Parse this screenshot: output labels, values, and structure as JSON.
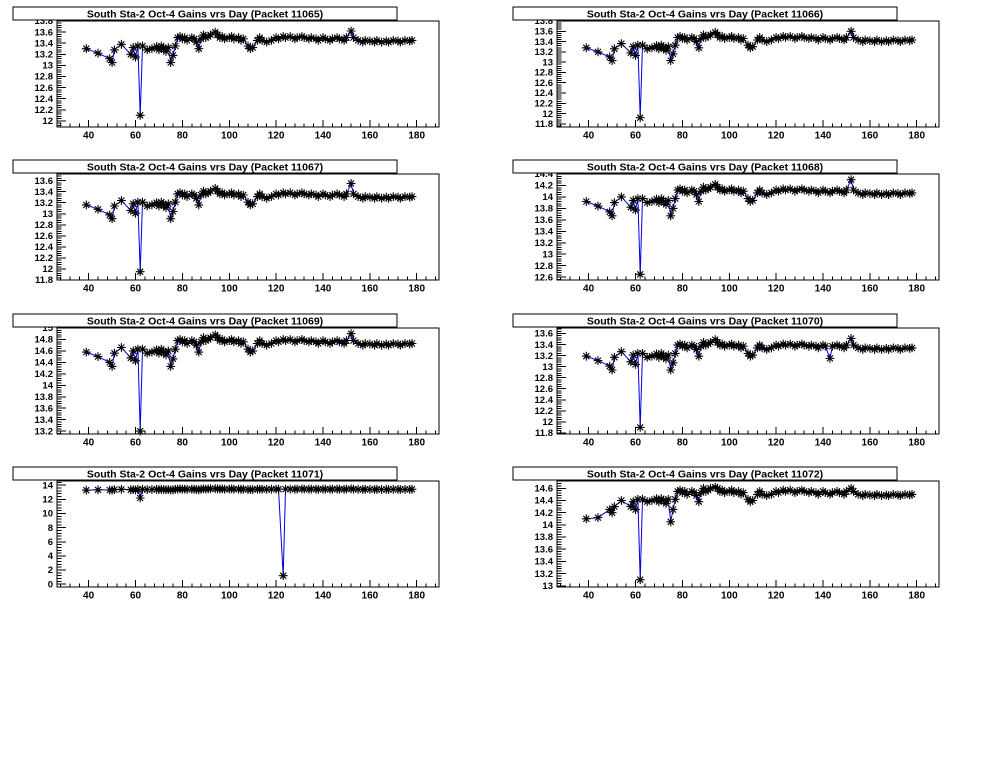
{
  "page": {
    "background": "#ffffff"
  },
  "chart_data": {
    "type": "line",
    "marker": "asterisk",
    "marker_color": "#000000",
    "line_color": "#0000e0",
    "xlim": [
      26.5,
      189.5
    ],
    "x_ticks": [
      40,
      60,
      80,
      100,
      120,
      140,
      160,
      180
    ],
    "x_minor_step": 4,
    "x": [
      39,
      44,
      49,
      50,
      51,
      54,
      58,
      59,
      60,
      61,
      62,
      63,
      65,
      67,
      69,
      70,
      71,
      72,
      73,
      74,
      75,
      76,
      77,
      78,
      79,
      80,
      81,
      82,
      84,
      85,
      86,
      87,
      88,
      89,
      90,
      91,
      92,
      94,
      95,
      96,
      97,
      98,
      100,
      101,
      102,
      104,
      105,
      106,
      108,
      109,
      110,
      112,
      113,
      114,
      116,
      118,
      120,
      121,
      123,
      124,
      126,
      128,
      129,
      131,
      132,
      134,
      135,
      137,
      138,
      140,
      141,
      143,
      144,
      146,
      147,
      149,
      150,
      152,
      153,
      155,
      157,
      158,
      160,
      162,
      163,
      165,
      167,
      168,
      170,
      172,
      173,
      175,
      177,
      178
    ],
    "panels": [
      {
        "packet": "11065",
        "title": "South Sta-2 Oct-4 Gains vrs Day (Packet 11065)",
        "ylim": [
          11.89,
          13.8
        ],
        "yticks": [
          12,
          12.2,
          12.4,
          12.6,
          12.8,
          13,
          13.2,
          13.4,
          13.6,
          13.8
        ],
        "y_minor_step": 0.04,
        "y": [
          13.3,
          13.22,
          13.12,
          13.05,
          13.28,
          13.38,
          13.2,
          13.32,
          13.15,
          13.35,
          12.1,
          13.35,
          13.28,
          13.3,
          13.34,
          13.28,
          13.35,
          13.3,
          13.25,
          13.32,
          13.05,
          13.18,
          13.35,
          13.5,
          13.52,
          13.48,
          13.5,
          13.45,
          13.5,
          13.48,
          13.42,
          13.3,
          13.48,
          13.55,
          13.5,
          13.52,
          13.55,
          13.6,
          13.55,
          13.5,
          13.52,
          13.48,
          13.5,
          13.52,
          13.48,
          13.5,
          13.45,
          13.48,
          13.35,
          13.3,
          13.32,
          13.45,
          13.5,
          13.45,
          13.42,
          13.45,
          13.5,
          13.48,
          13.52,
          13.5,
          13.52,
          13.48,
          13.5,
          13.52,
          13.5,
          13.48,
          13.5,
          13.48,
          13.45,
          13.5,
          13.48,
          13.45,
          13.48,
          13.5,
          13.48,
          13.45,
          13.5,
          13.62,
          13.5,
          13.45,
          13.42,
          13.45,
          13.44,
          13.42,
          13.45,
          13.42,
          13.44,
          13.42,
          13.45,
          13.44,
          13.42,
          13.45,
          13.44,
          13.45
        ]
      },
      {
        "packet": "11066",
        "title": "South Sta-2 Oct-4 Gains vrs Day (Packet 11066)",
        "ylim": [
          11.74,
          13.8
        ],
        "yticks": [
          11.8,
          12,
          12.2,
          12.4,
          12.6,
          12.8,
          13,
          13.2,
          13.4,
          13.6,
          13.8
        ],
        "y_minor_step": 0.04,
        "y": [
          13.28,
          13.2,
          13.1,
          13.03,
          13.26,
          13.36,
          13.18,
          13.3,
          13.13,
          13.33,
          11.92,
          13.33,
          13.26,
          13.28,
          13.32,
          13.26,
          13.33,
          13.28,
          13.23,
          13.3,
          13.03,
          13.16,
          13.33,
          13.48,
          13.5,
          13.46,
          13.48,
          13.43,
          13.48,
          13.46,
          13.4,
          13.28,
          13.46,
          13.53,
          13.48,
          13.5,
          13.53,
          13.58,
          13.53,
          13.48,
          13.5,
          13.46,
          13.48,
          13.5,
          13.46,
          13.48,
          13.43,
          13.46,
          13.33,
          13.28,
          13.3,
          13.43,
          13.48,
          13.43,
          13.4,
          13.43,
          13.48,
          13.46,
          13.5,
          13.48,
          13.5,
          13.46,
          13.48,
          13.5,
          13.48,
          13.46,
          13.48,
          13.46,
          13.43,
          13.48,
          13.46,
          13.43,
          13.46,
          13.48,
          13.46,
          13.43,
          13.48,
          13.6,
          13.48,
          13.43,
          13.4,
          13.43,
          13.42,
          13.4,
          13.43,
          13.4,
          13.42,
          13.4,
          13.43,
          13.42,
          13.4,
          13.43,
          13.42,
          13.43
        ]
      },
      {
        "packet": "11067",
        "title": "South Sta-2 Oct-4 Gains vrs Day (Packet 11067)",
        "ylim": [
          11.8,
          13.72
        ],
        "yticks": [
          11.8,
          12,
          12.2,
          12.4,
          12.6,
          12.8,
          13,
          13.2,
          13.4,
          13.6
        ],
        "y_minor_step": 0.04,
        "y": [
          13.16,
          13.08,
          12.98,
          12.91,
          13.14,
          13.24,
          13.06,
          13.18,
          13.01,
          13.21,
          11.95,
          13.21,
          13.14,
          13.16,
          13.2,
          13.14,
          13.21,
          13.16,
          13.11,
          13.18,
          12.91,
          13.04,
          13.21,
          13.36,
          13.38,
          13.34,
          13.36,
          13.31,
          13.36,
          13.34,
          13.28,
          13.16,
          13.34,
          13.41,
          13.36,
          13.38,
          13.41,
          13.46,
          13.41,
          13.36,
          13.38,
          13.34,
          13.36,
          13.38,
          13.34,
          13.36,
          13.31,
          13.34,
          13.21,
          13.16,
          13.18,
          13.31,
          13.36,
          13.31,
          13.28,
          13.31,
          13.36,
          13.34,
          13.38,
          13.36,
          13.38,
          13.34,
          13.36,
          13.38,
          13.36,
          13.34,
          13.36,
          13.34,
          13.31,
          13.36,
          13.34,
          13.31,
          13.34,
          13.36,
          13.34,
          13.31,
          13.36,
          13.55,
          13.36,
          13.31,
          13.28,
          13.31,
          13.3,
          13.28,
          13.31,
          13.28,
          13.3,
          13.28,
          13.31,
          13.3,
          13.28,
          13.31,
          13.3,
          13.31
        ]
      },
      {
        "packet": "11068",
        "title": "South Sta-2 Oct-4 Gains vrs Day (Packet 11068)",
        "ylim": [
          12.55,
          14.4
        ],
        "yticks": [
          12.6,
          12.8,
          13,
          13.2,
          13.4,
          13.6,
          13.8,
          14,
          14.2,
          14.4
        ],
        "y_minor_step": 0.04,
        "y": [
          13.92,
          13.84,
          13.74,
          13.67,
          13.9,
          14.0,
          13.82,
          13.94,
          13.77,
          13.97,
          12.65,
          13.97,
          13.9,
          13.92,
          13.96,
          13.9,
          13.97,
          13.92,
          13.87,
          13.94,
          13.67,
          13.8,
          13.97,
          14.12,
          14.14,
          14.1,
          14.12,
          14.07,
          14.12,
          14.1,
          14.04,
          13.92,
          14.1,
          14.17,
          14.12,
          14.14,
          14.17,
          14.22,
          14.17,
          14.12,
          14.14,
          14.1,
          14.12,
          14.14,
          14.1,
          14.12,
          14.07,
          14.1,
          13.97,
          13.92,
          13.94,
          14.07,
          14.12,
          14.07,
          14.04,
          14.07,
          14.12,
          14.1,
          14.14,
          14.12,
          14.14,
          14.1,
          14.12,
          14.14,
          14.12,
          14.1,
          14.12,
          14.1,
          14.07,
          14.12,
          14.1,
          14.07,
          14.1,
          14.12,
          14.1,
          14.07,
          14.12,
          14.3,
          14.12,
          14.07,
          14.04,
          14.07,
          14.06,
          14.04,
          14.07,
          14.04,
          14.06,
          14.04,
          14.07,
          14.06,
          14.04,
          14.07,
          14.06,
          14.07
        ]
      },
      {
        "packet": "11069",
        "title": "South Sta-2 Oct-4 Gains vrs Day (Packet 11069)",
        "ylim": [
          13.15,
          15.0
        ],
        "yticks": [
          13.2,
          13.4,
          13.6,
          13.8,
          14,
          14.2,
          14.4,
          14.6,
          14.8,
          15
        ],
        "y_minor_step": 0.04,
        "y": [
          14.58,
          14.5,
          14.4,
          14.33,
          14.56,
          14.66,
          14.48,
          14.6,
          14.43,
          14.63,
          13.2,
          14.63,
          14.56,
          14.58,
          14.62,
          14.56,
          14.63,
          14.58,
          14.53,
          14.6,
          14.33,
          14.46,
          14.63,
          14.78,
          14.8,
          14.76,
          14.78,
          14.73,
          14.78,
          14.76,
          14.7,
          14.58,
          14.76,
          14.83,
          14.78,
          14.8,
          14.83,
          14.88,
          14.83,
          14.78,
          14.8,
          14.76,
          14.78,
          14.8,
          14.76,
          14.78,
          14.73,
          14.76,
          14.63,
          14.58,
          14.6,
          14.73,
          14.78,
          14.73,
          14.7,
          14.73,
          14.78,
          14.76,
          14.8,
          14.78,
          14.8,
          14.76,
          14.78,
          14.8,
          14.78,
          14.76,
          14.78,
          14.76,
          14.73,
          14.78,
          14.76,
          14.73,
          14.76,
          14.78,
          14.76,
          14.73,
          14.78,
          14.9,
          14.78,
          14.73,
          14.7,
          14.73,
          14.72,
          14.7,
          14.73,
          14.7,
          14.72,
          14.7,
          14.73,
          14.72,
          14.7,
          14.73,
          14.72,
          14.73
        ]
      },
      {
        "packet": "11070",
        "title": "South Sta-2 Oct-4 Gains vrs Day (Packet 11070)",
        "ylim": [
          11.78,
          13.7
        ],
        "yticks": [
          11.8,
          12,
          12.2,
          12.4,
          12.6,
          12.8,
          13,
          13.2,
          13.4,
          13.6
        ],
        "y_minor_step": 0.04,
        "y": [
          13.19,
          13.11,
          13.01,
          12.94,
          13.17,
          13.27,
          13.09,
          13.21,
          13.04,
          13.24,
          11.9,
          13.24,
          13.17,
          13.19,
          13.23,
          13.17,
          13.24,
          13.19,
          13.14,
          13.21,
          12.94,
          13.07,
          13.24,
          13.39,
          13.41,
          13.37,
          13.39,
          13.34,
          13.39,
          13.37,
          13.31,
          13.19,
          13.37,
          13.44,
          13.39,
          13.41,
          13.44,
          13.49,
          13.44,
          13.39,
          13.41,
          13.37,
          13.39,
          13.41,
          13.37,
          13.39,
          13.34,
          13.37,
          13.24,
          13.19,
          13.21,
          13.34,
          13.39,
          13.34,
          13.31,
          13.34,
          13.39,
          13.37,
          13.41,
          13.39,
          13.41,
          13.37,
          13.39,
          13.41,
          13.39,
          13.37,
          13.39,
          13.37,
          13.34,
          13.39,
          13.37,
          13.15,
          13.37,
          13.39,
          13.37,
          13.34,
          13.39,
          13.51,
          13.39,
          13.34,
          13.31,
          13.34,
          13.33,
          13.31,
          13.34,
          13.31,
          13.33,
          13.31,
          13.34,
          13.33,
          13.31,
          13.34,
          13.33,
          13.34
        ]
      },
      {
        "packet": "11071",
        "title": "South Sta-2 Oct-4 Gains vrs Day (Packet 11071)",
        "ylim": [
          -0.4,
          14.6
        ],
        "yticks": [
          0,
          2,
          4,
          6,
          8,
          10,
          12,
          14
        ],
        "y_minor_step": 0.4,
        "y": [
          13.3,
          13.35,
          13.32,
          13.3,
          13.38,
          13.42,
          13.35,
          13.4,
          13.33,
          13.42,
          12.2,
          13.42,
          13.38,
          13.4,
          13.42,
          13.38,
          13.42,
          13.4,
          13.36,
          13.4,
          13.32,
          13.36,
          13.42,
          13.46,
          13.48,
          13.44,
          13.46,
          13.42,
          13.46,
          13.44,
          13.4,
          13.36,
          13.44,
          13.5,
          13.46,
          13.48,
          13.5,
          13.52,
          13.5,
          13.46,
          13.48,
          13.44,
          13.46,
          13.48,
          13.44,
          13.46,
          13.42,
          13.44,
          13.4,
          13.38,
          13.4,
          13.44,
          13.46,
          13.44,
          13.42,
          13.44,
          13.46,
          13.44,
          1.2,
          13.46,
          13.46,
          13.44,
          13.46,
          13.48,
          13.46,
          13.44,
          13.46,
          13.44,
          13.42,
          13.46,
          13.44,
          13.42,
          13.44,
          13.46,
          13.44,
          13.42,
          13.46,
          13.5,
          13.46,
          13.42,
          13.4,
          13.42,
          13.41,
          13.4,
          13.42,
          13.4,
          13.41,
          13.4,
          13.42,
          13.41,
          13.4,
          13.42,
          13.41,
          13.42
        ]
      },
      {
        "packet": "11072",
        "title": "South Sta-2 Oct-4 Gains vrs Day (Packet 11072)",
        "ylim": [
          12.98,
          14.72
        ],
        "yticks": [
          13,
          13.2,
          13.4,
          13.6,
          13.8,
          14,
          14.2,
          14.4,
          14.6
        ],
        "y_minor_step": 0.04,
        "y": [
          14.1,
          14.12,
          14.25,
          14.2,
          14.3,
          14.4,
          14.3,
          14.38,
          14.25,
          14.42,
          13.1,
          14.42,
          14.38,
          14.4,
          14.43,
          14.38,
          14.43,
          14.4,
          14.35,
          14.42,
          14.05,
          14.25,
          14.42,
          14.55,
          14.57,
          14.53,
          14.55,
          14.5,
          14.55,
          14.53,
          14.48,
          14.38,
          14.53,
          14.6,
          14.55,
          14.57,
          14.6,
          14.62,
          14.6,
          14.55,
          14.57,
          14.53,
          14.55,
          14.57,
          14.53,
          14.55,
          14.5,
          14.53,
          14.42,
          14.38,
          14.4,
          14.5,
          14.55,
          14.5,
          14.48,
          14.5,
          14.55,
          14.53,
          14.57,
          14.55,
          14.57,
          14.53,
          14.55,
          14.57,
          14.55,
          14.53,
          14.55,
          14.53,
          14.5,
          14.55,
          14.53,
          14.5,
          14.53,
          14.55,
          14.53,
          14.5,
          14.55,
          14.6,
          14.55,
          14.5,
          14.48,
          14.5,
          14.49,
          14.48,
          14.5,
          14.48,
          14.49,
          14.48,
          14.5,
          14.49,
          14.48,
          14.5,
          14.49,
          14.5
        ]
      }
    ]
  }
}
